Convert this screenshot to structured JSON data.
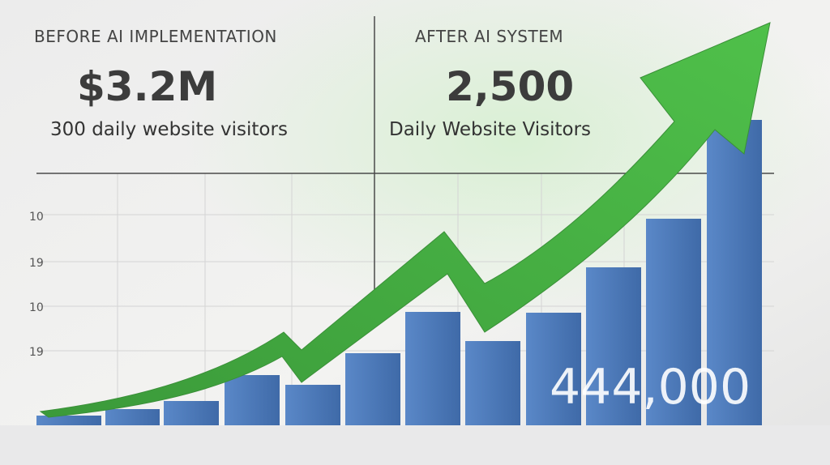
{
  "before": {
    "heading": "BEFORE AI IMPLEMENTATION",
    "figure": "$3.2M",
    "caption": "300 daily website visitors"
  },
  "after": {
    "heading": "AFTER AI SYSTEM",
    "figure": "2,500",
    "caption": "Daily Website Visitors"
  },
  "axis_labels": [
    "10",
    "19",
    "10",
    "19"
  ],
  "overlay_figure": "444,000"
}
